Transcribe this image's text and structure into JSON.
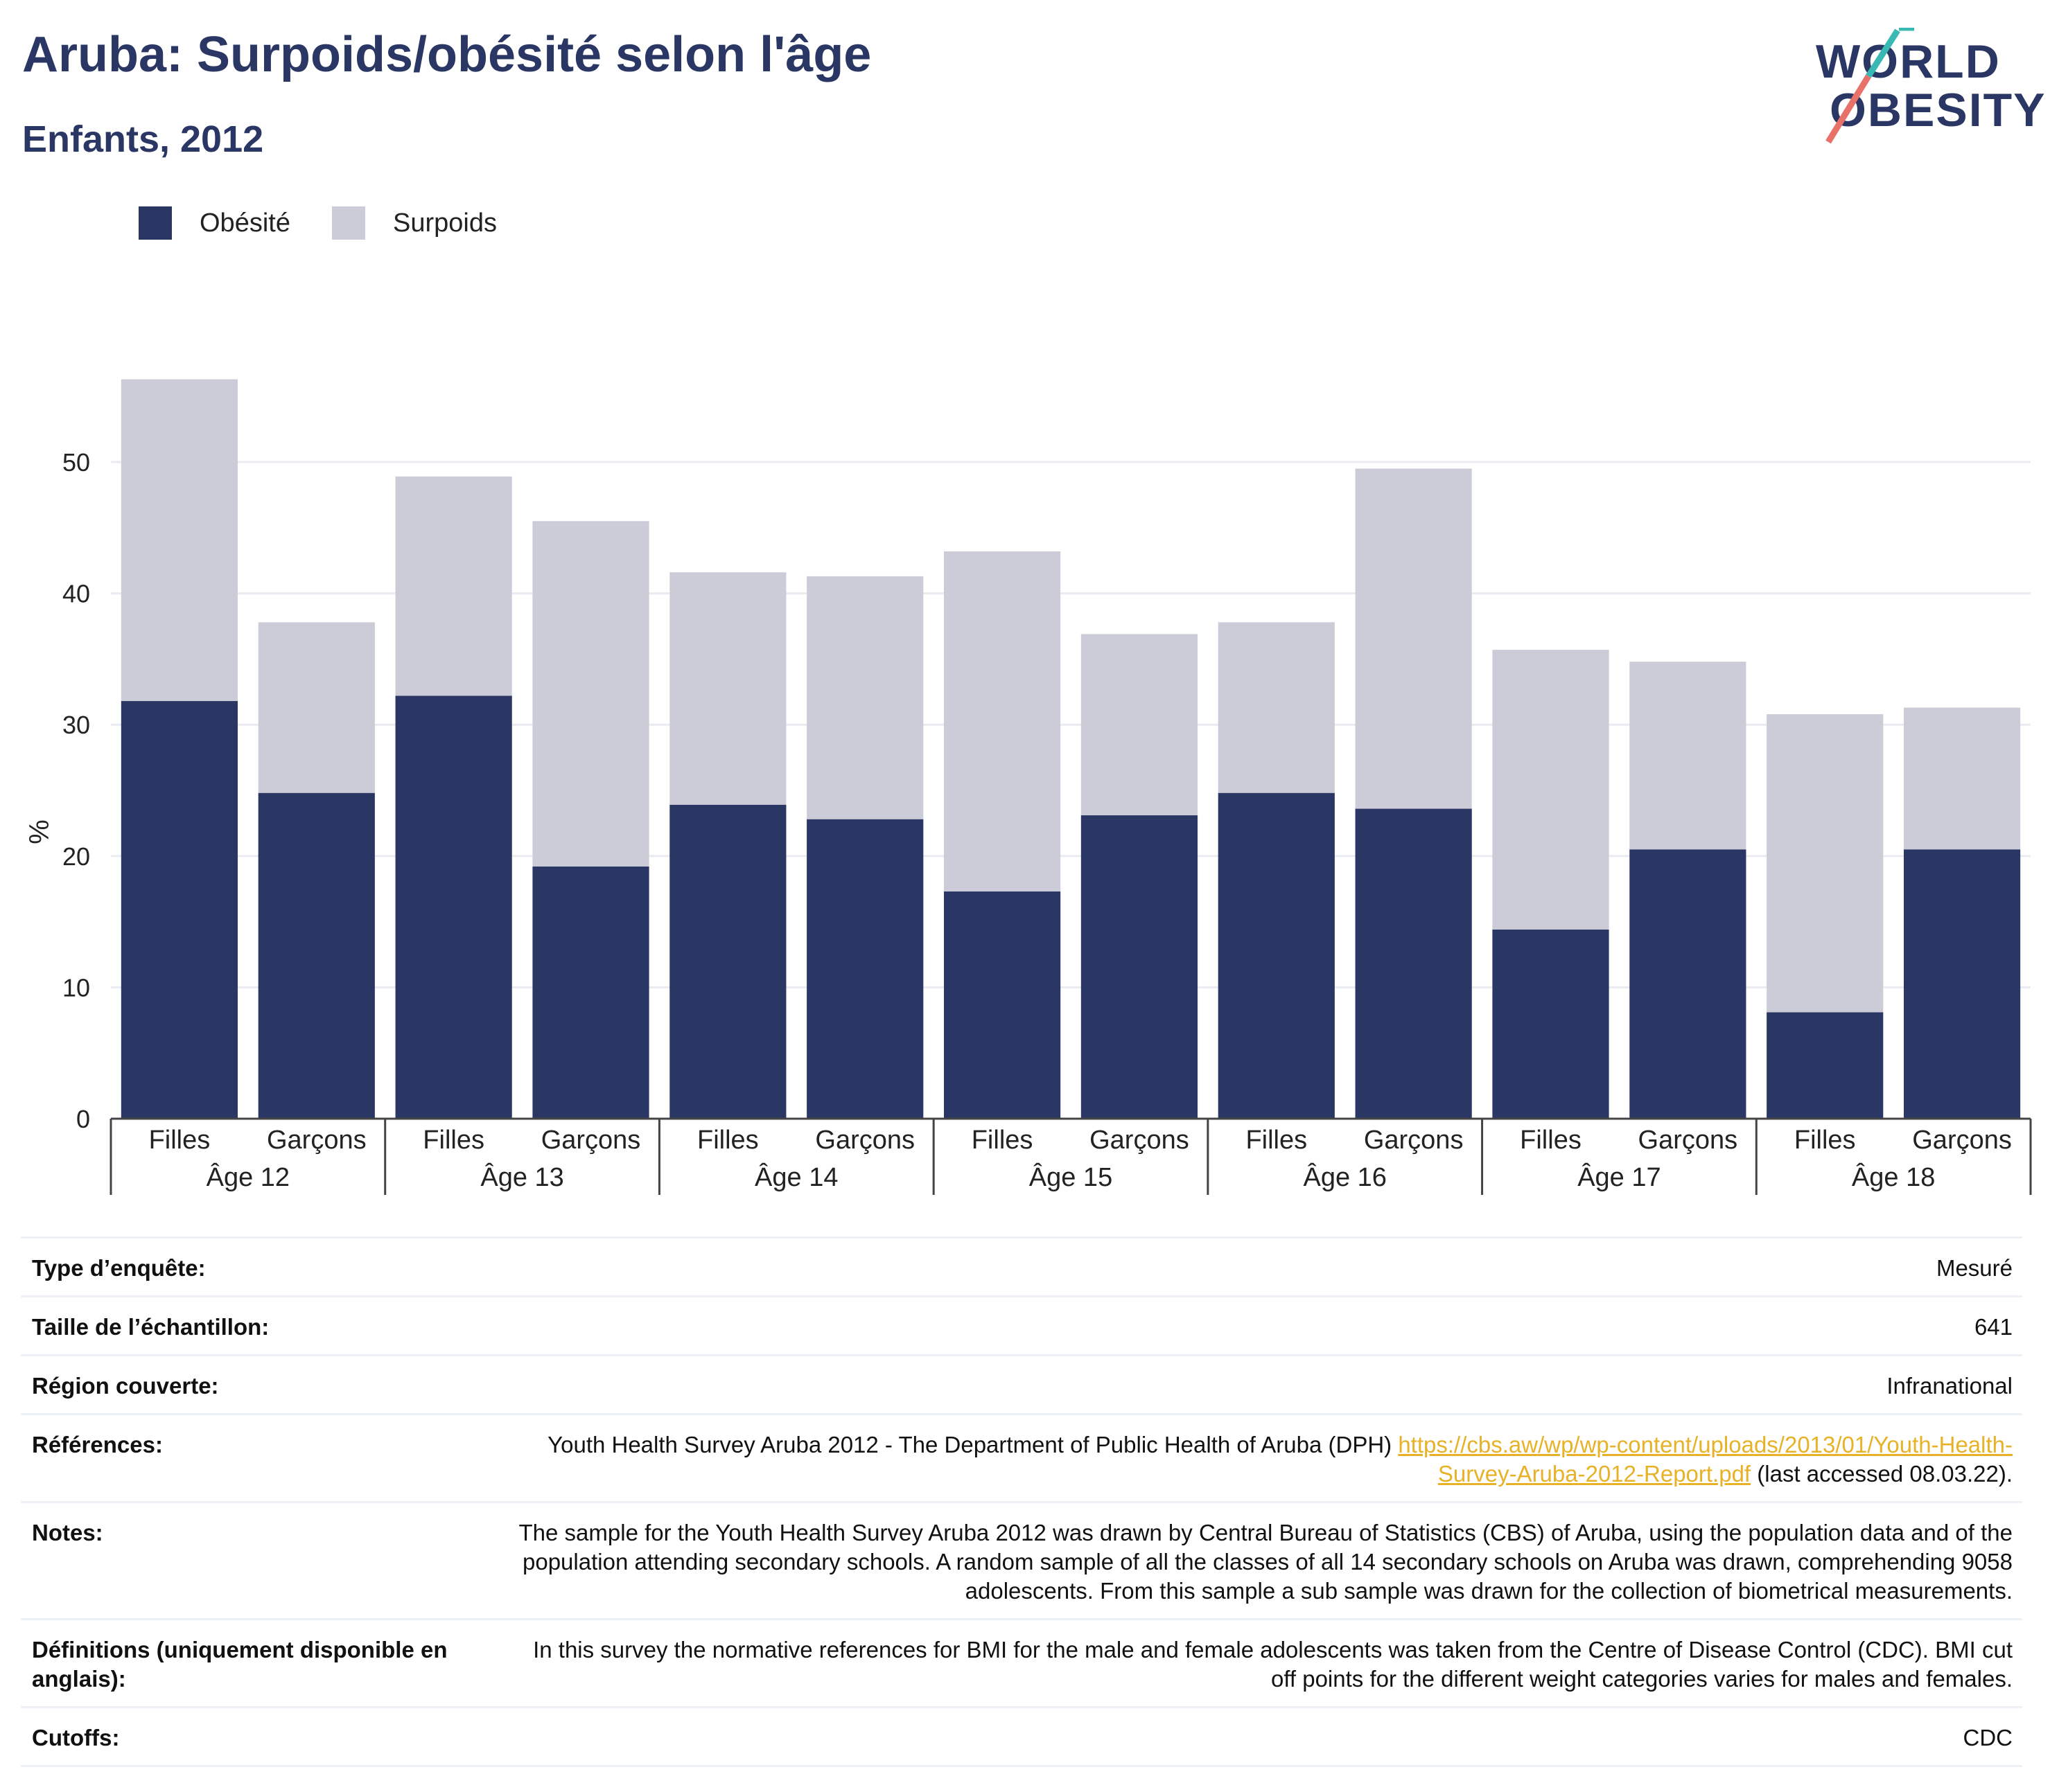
{
  "title": "Aruba: Surpoids/obésité selon l'âge",
  "subtitle": "Enfants, 2012",
  "logo": {
    "line1": "WORLD",
    "line2": "OBESITY"
  },
  "colors": {
    "obesity": "#2a3663",
    "overweight": "#cbccd8",
    "accent_teal": "#3ab8b4",
    "accent_red": "#e8716a",
    "link": "#e8b228"
  },
  "legend": {
    "obesity": "Obésité",
    "overweight": "Surpoids"
  },
  "chart_data": {
    "type": "bar",
    "stacked": true,
    "ylabel": "%",
    "ylim": [
      0,
      60
    ],
    "yticks": [
      0,
      10,
      20,
      30,
      40,
      50
    ],
    "grid": true,
    "legend_position": "top-left",
    "groups": [
      "Âge 12",
      "Âge 13",
      "Âge 14",
      "Âge 15",
      "Âge 16",
      "Âge 17",
      "Âge 18"
    ],
    "subcategories": [
      "Filles",
      "Garçons"
    ],
    "series": [
      {
        "name": "Obésité",
        "values": [
          31.8,
          24.8,
          32.2,
          19.2,
          23.9,
          22.8,
          17.3,
          23.1,
          24.8,
          23.6,
          14.4,
          20.5,
          8.1,
          20.5
        ]
      },
      {
        "name": "Surpoids",
        "values": [
          24.5,
          13.0,
          16.7,
          26.3,
          17.7,
          18.5,
          25.9,
          13.8,
          13.0,
          25.9,
          21.3,
          14.3,
          22.7,
          10.8
        ]
      }
    ]
  },
  "info": {
    "survey_type_label": "Type d’enquête:",
    "survey_type": "Mesuré",
    "sample_label": "Taille de l’échantillon:",
    "sample": "641",
    "region_label": "Région couverte:",
    "region": "Infranational",
    "references_label": "Références:",
    "references_text": "Youth Health Survey Aruba 2012 - The Department of Public Health of Aruba (DPH)",
    "references_link": "https://cbs.aw/wp/wp-content/uploads/2013/01/Youth-Health-Survey-Aruba-2012-Report.pdf",
    "references_suffix": "(last accessed 08.03.22).",
    "notes_label": "Notes:",
    "notes": "The sample for the Youth Health Survey Aruba 2012 was drawn by Central Bureau of Statistics (CBS) of Aruba, using the population data and of the population attending secondary schools. A random sample of all the classes of all 14 secondary schools on Aruba was drawn, comprehending 9058 adolescents. From this sample a sub sample was drawn for the collection of biometrical measurements.",
    "definitions_label": "Définitions (uniquement disponible en anglais):",
    "definitions": "In this survey the normative references for BMI for the male and female adolescents was taken from the Centre of Disease Control (CDC). BMI cut off points for the different weight categories varies for males and females.",
    "cutoffs_label": "Cutoffs:",
    "cutoffs": "CDC"
  }
}
